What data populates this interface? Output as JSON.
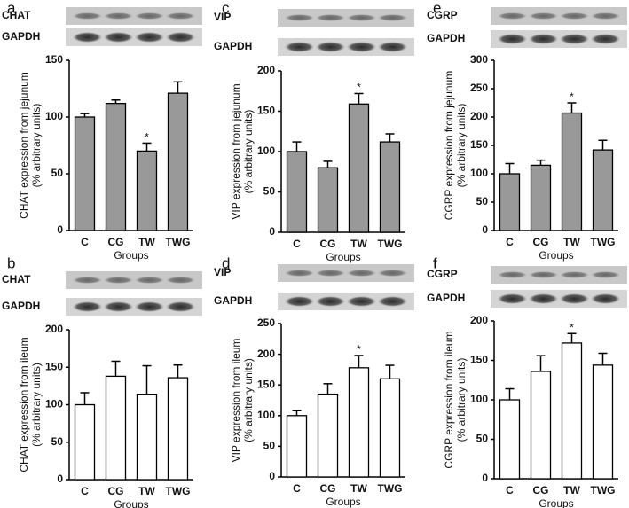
{
  "chart_data": [
    {
      "type": "bar",
      "panel": "a",
      "blots": [
        "CHAT",
        "GAPDH"
      ],
      "ylabel": [
        "CHAT expression from jejunum",
        "(% arbitrary units)"
      ],
      "xlabel": "Groups",
      "categories": [
        "C",
        "CG",
        "TW",
        "TWG"
      ],
      "values": [
        100,
        112,
        70,
        121
      ],
      "errors": [
        3,
        3,
        7,
        10
      ],
      "significance": [
        null,
        null,
        "*",
        null
      ],
      "color": "#999999",
      "ylim": [
        0,
        150
      ],
      "yticks": [
        0,
        50,
        100,
        150
      ]
    },
    {
      "type": "bar",
      "panel": "b",
      "blots": [
        "CHAT",
        "GAPDH"
      ],
      "ylabel": [
        "CHAT expression from ileum",
        "(% arbitrary units)"
      ],
      "xlabel": "Groups",
      "categories": [
        "C",
        "CG",
        "TW",
        "TWG"
      ],
      "values": [
        100,
        138,
        114,
        136
      ],
      "errors": [
        16,
        20,
        38,
        17
      ],
      "significance": [
        null,
        null,
        null,
        null
      ],
      "color": "#ffffff",
      "ylim": [
        0,
        200
      ],
      "yticks": [
        0,
        50,
        100,
        150,
        200
      ]
    },
    {
      "type": "bar",
      "panel": "c",
      "blots": [
        "VIP",
        "GAPDH"
      ],
      "ylabel": [
        "VIP expression from jejunum",
        "(% arbitrary units)"
      ],
      "xlabel": "Groups",
      "categories": [
        "C",
        "CG",
        "TW",
        "TWG"
      ],
      "values": [
        100,
        80,
        159,
        112
      ],
      "errors": [
        12,
        8,
        13,
        10
      ],
      "significance": [
        null,
        null,
        "*",
        null
      ],
      "color": "#999999",
      "ylim": [
        0,
        200
      ],
      "yticks": [
        0,
        50,
        100,
        150,
        200
      ]
    },
    {
      "type": "bar",
      "panel": "d",
      "blots": [
        "VIP",
        "GAPDH"
      ],
      "ylabel": [
        "VIP expression from ileum",
        "(% arbitrary units)"
      ],
      "xlabel": "Groups",
      "categories": [
        "C",
        "CG",
        "TW",
        "TWG"
      ],
      "values": [
        100,
        135,
        178,
        160
      ],
      "errors": [
        8,
        17,
        20,
        22
      ],
      "significance": [
        null,
        null,
        "*",
        null
      ],
      "color": "#ffffff",
      "ylim": [
        0,
        250
      ],
      "yticks": [
        0,
        50,
        100,
        150,
        200,
        250
      ]
    },
    {
      "type": "bar",
      "panel": "e",
      "blots": [
        "CGRP",
        "GAPDH"
      ],
      "ylabel": [
        "CGRP expression from jejunum",
        "(% arbitrary units)"
      ],
      "xlabel": "Groups",
      "categories": [
        "C",
        "CG",
        "TW",
        "TWG"
      ],
      "values": [
        100,
        115,
        207,
        142
      ],
      "errors": [
        18,
        9,
        18,
        17
      ],
      "significance": [
        null,
        null,
        "*",
        null
      ],
      "color": "#999999",
      "ylim": [
        0,
        300
      ],
      "yticks": [
        0,
        50,
        100,
        150,
        200,
        250,
        300
      ]
    },
    {
      "type": "bar",
      "panel": "f",
      "blots": [
        "CGRP",
        "GAPDH"
      ],
      "ylabel": [
        "CGRP expression from ileum",
        "(% arbitrary units)"
      ],
      "xlabel": "Groups",
      "categories": [
        "C",
        "CG",
        "TW",
        "TWG"
      ],
      "values": [
        100,
        136,
        172,
        144
      ],
      "errors": [
        14,
        20,
        12,
        15
      ],
      "significance": [
        null,
        null,
        "*",
        null
      ],
      "color": "#ffffff",
      "ylim": [
        0,
        200
      ],
      "yticks": [
        0,
        50,
        100,
        150,
        200
      ]
    }
  ]
}
